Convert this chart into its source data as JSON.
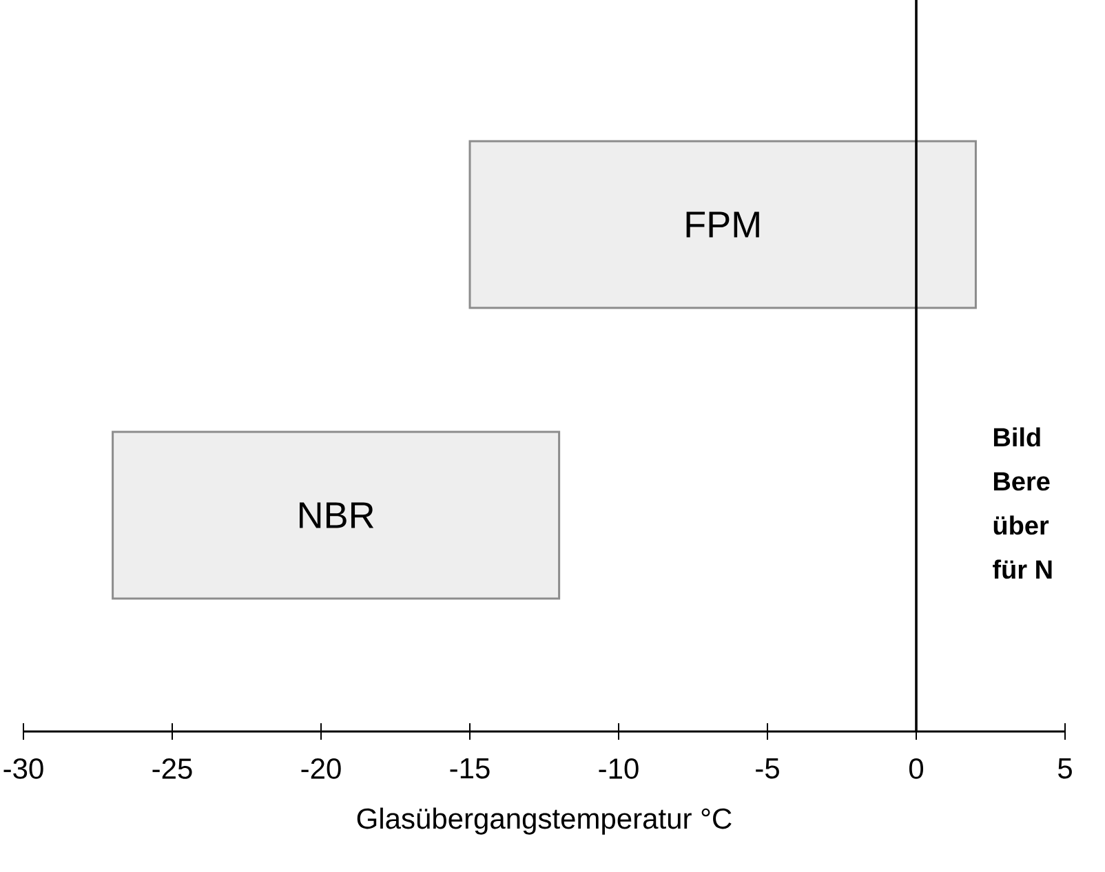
{
  "chart_data": {
    "type": "bar",
    "orientation": "horizontal",
    "categories": [
      "FPM",
      "NBR"
    ],
    "base": [
      -15,
      -27
    ],
    "values": [
      17,
      15
    ],
    "color": "#eeeeee",
    "xlabel": "Glasübergangstemperatur    °C",
    "xlim": [
      -30,
      5
    ],
    "xticks": [
      -30,
      -25,
      -20,
      -15,
      -10,
      -5,
      0,
      5
    ],
    "ref_lines": [
      {
        "axis": "x",
        "value": 0,
        "color": "#000000"
      }
    ],
    "annotations": [
      "Bild",
      "Bere",
      "über",
      "für N"
    ],
    "grid": false
  }
}
